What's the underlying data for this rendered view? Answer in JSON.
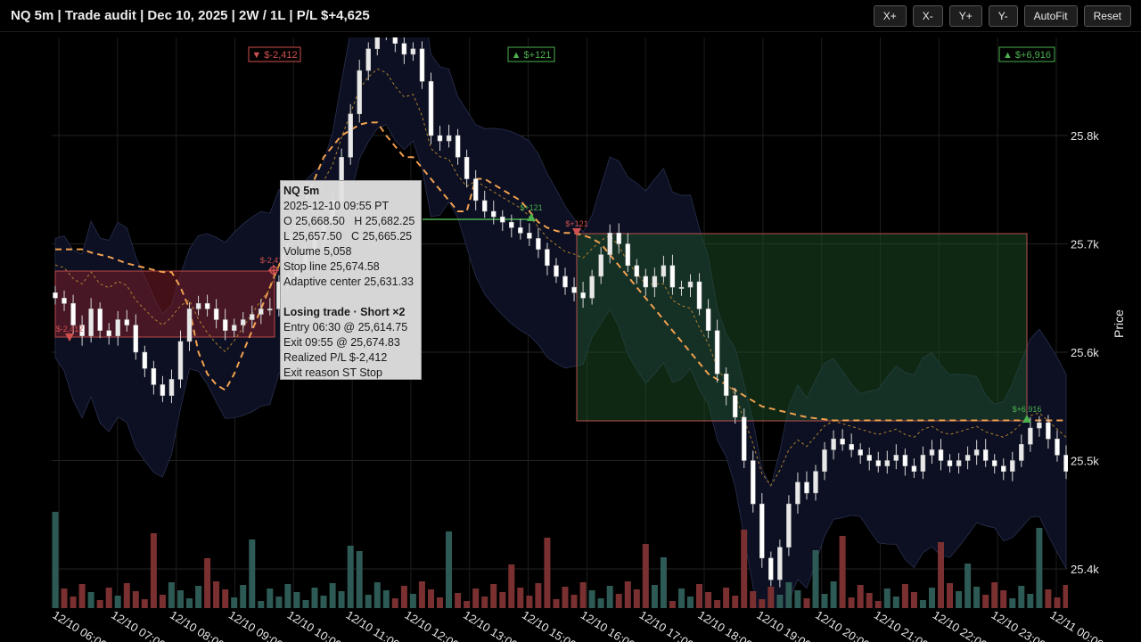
{
  "header": {
    "title": "NQ 5m | Trade audit | Dec 10, 2025 | 2W / 1L | P/L $+4,625"
  },
  "toolbar": {
    "x_plus": "X+",
    "x_minus": "X-",
    "y_plus": "Y+",
    "y_minus": "Y-",
    "autofit": "AutoFit",
    "reset": "Reset"
  },
  "trade_labels": [
    {
      "text": "▼ $-2,412",
      "result": "loss"
    },
    {
      "text": "▲ $+121",
      "result": "win"
    },
    {
      "text": "▲ $+6,916",
      "result": "win"
    }
  ],
  "trade_marker_labels": [
    "$-2,412",
    "$+121",
    "$+6,916"
  ],
  "tooltip": {
    "symbol": "NQ 5m",
    "time": "2025-12-10 09:55 PT",
    "ohlc_line1": "O 25,668.50   H 25,682.25",
    "ohlc_line2": "L 25,657.50   C 25,665.25",
    "volume": "Volume 5,058",
    "stop_line": "Stop line 25,674.58",
    "adaptive_center": "Adaptive center 25,631.33",
    "trade_title": "Losing trade · Short ×2",
    "entry": "Entry 06:30 @ 25,614.75",
    "exit": "Exit 09:55 @ 25,674.83",
    "realized": "Realized P/L $-2,412",
    "exit_reason": "Exit reason ST Stop"
  },
  "colors": {
    "background": "#000000",
    "up_candle": "#e8e8e8",
    "down_candle": "#ffffff",
    "stop_line": "#f0a050",
    "band_fill": "#0c1022",
    "loss": "#d05050",
    "win": "#4cb050",
    "volume_up": "#2e5a55",
    "volume_down": "#7a3030"
  },
  "chart_data": {
    "type": "candlestick",
    "title": "NQ 5m | Trade audit | Dec 10, 2025 | 2W / 1L | P/L $+4,625",
    "ylabel": "Price",
    "ylim": [
      25370,
      25935
    ],
    "y_ticks": [
      25400,
      25500,
      25600,
      25700,
      25800
    ],
    "y_tick_labels": [
      "25.4k",
      "25.5k",
      "25.6k",
      "25.7k",
      "25.8k"
    ],
    "x_tick_labels": [
      "12/10 06:00",
      "12/10 07:00",
      "12/10 08:00",
      "12/10 09:00",
      "12/10 10:00",
      "12/10 11:00",
      "12/10 12:00",
      "12/10 13:00",
      "12/10 15:00",
      "12/10 16:00",
      "12/10 17:00",
      "12/10 18:00",
      "12/10 19:00",
      "12/10 20:00",
      "12/10 21:00",
      "12/10 22:00",
      "12/10 23:00",
      "12/11 00:00"
    ],
    "grid": true,
    "series": [
      {
        "name": "Close",
        "values": [
          25650,
          25645,
          25625,
          25615,
          25640,
          25620,
          25615,
          25630,
          25625,
          25600,
          25585,
          25570,
          25560,
          25575,
          25610,
          25640,
          25645,
          25640,
          25630,
          25620,
          25625,
          25630,
          25635,
          25640,
          25640,
          25665,
          25670,
          25680,
          25690,
          25705,
          25720,
          25740,
          25780,
          25820,
          25860,
          25880,
          25895,
          25900,
          25885,
          25875,
          25880,
          25850,
          25800,
          25795,
          25800,
          25780,
          25760,
          25740,
          25730,
          25725,
          25720,
          25715,
          25710,
          25705,
          25695,
          25680,
          25670,
          25660,
          25655,
          25650,
          25670,
          25690,
          25710,
          25700,
          25680,
          25670,
          25660,
          25670,
          25680,
          25660,
          25660,
          25665,
          25640,
          25620,
          25580,
          25560,
          25540,
          25500,
          25460,
          25410,
          25390,
          25420,
          25460,
          25480,
          25470,
          25490,
          25510,
          25520,
          25515,
          25510,
          25505,
          25500,
          25495,
          25500,
          25505,
          25495,
          25490,
          25505,
          25510,
          25500,
          25495,
          25500,
          25505,
          25510,
          25500,
          25495,
          25490,
          25500,
          25515,
          25530,
          25535,
          25520,
          25505,
          25490
        ]
      },
      {
        "name": "Stop line",
        "values": [
          25695,
          25695,
          25695,
          25695,
          25692,
          25690,
          25688,
          25685,
          25682,
          25680,
          25678,
          25676,
          25674,
          25674,
          25660,
          25640,
          25600,
          25580,
          25570,
          25565,
          25580,
          25600,
          25620,
          25640,
          25660,
          25680,
          25700,
          25720,
          25740,
          25760,
          25780,
          25790,
          25800,
          25805,
          25810,
          25812,
          25812,
          25800,
          25790,
          25780,
          25780,
          25770,
          25760,
          25750,
          25740,
          25730,
          25730,
          25760,
          25760,
          25755,
          25750,
          25745,
          25740,
          25730,
          25720,
          25715,
          25712,
          25710,
          25710,
          25708,
          25705,
          25700,
          25690,
          25680,
          25670,
          25660,
          25650,
          25640,
          25630,
          25620,
          25610,
          25600,
          25590,
          25580,
          25575,
          25570,
          25565,
          25560,
          25555,
          25550,
          25548,
          25546,
          25544,
          25542,
          25540,
          25539,
          25538,
          25537,
          25537,
          25537,
          25537,
          25537,
          25537,
          25537,
          25537,
          25537,
          25537,
          25537,
          25537,
          25537,
          25537,
          25537,
          25537,
          25537,
          25537,
          25537,
          25537,
          25537,
          25537,
          25537,
          25537,
          25537,
          25537,
          25537
        ]
      }
    ],
    "trades": [
      {
        "side": "Short",
        "qty": 2,
        "entry_time": "06:30",
        "entry_price": 25614.75,
        "exit_time": "09:55",
        "exit_price": 25674.83,
        "pnl": -2412,
        "exit_reason": "ST Stop"
      },
      {
        "side": "Long",
        "pnl": 121
      },
      {
        "side": "Short",
        "pnl": 6916
      }
    ],
    "legend": "none",
    "volume_panel": true
  }
}
